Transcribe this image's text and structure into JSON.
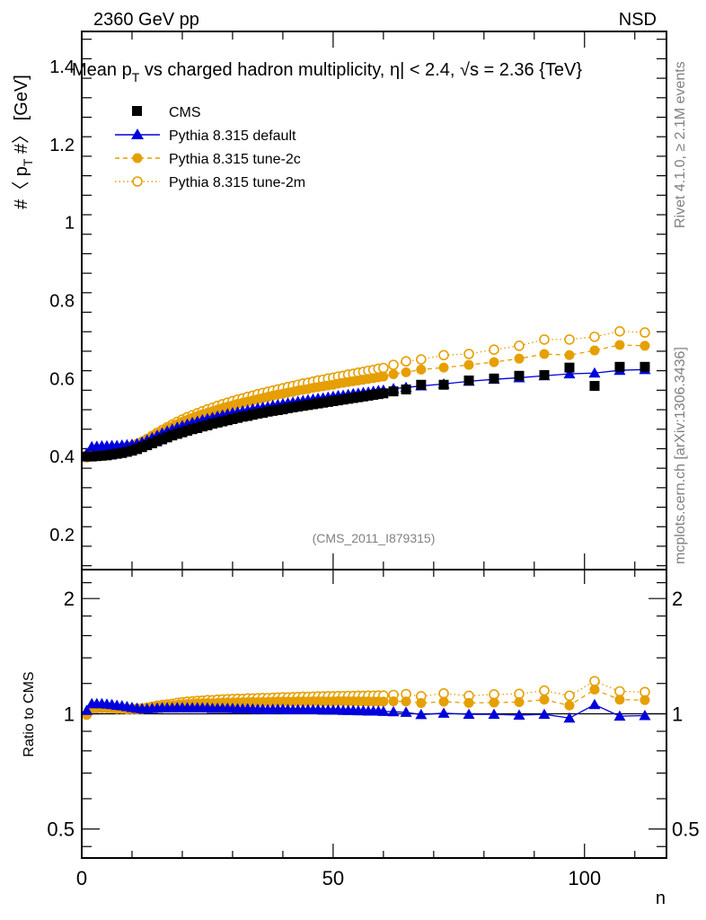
{
  "header": {
    "left_label": "2360 GeV pp",
    "right_label": "NSD"
  },
  "side_labels": {
    "rivet": "Rivet 4.1.0, ≥ 2.1M events",
    "mcplots": "mcplots.cern.ch [arXiv:1306.3436]"
  },
  "colors": {
    "cms": "#000000",
    "default": "#0000dd",
    "tune2c": "#e69f00",
    "tune2m": "#e69f00"
  },
  "chart_data": [
    {
      "type": "scatter",
      "title": "Mean p_T vs charged hadron multiplicity, |η| < 2.4, √s = 2.36 {TeV}",
      "title_parts": {
        "a": "Mean p",
        "sub": "T",
        "b": " vs charged hadron multiplicity, ",
        "eta": "η",
        "c": "| < 2.4, ",
        "sqrt": "√",
        "d": "s = 2.36 {TeV}"
      },
      "xlabel": "n",
      "ylabel": "#〈 p_T #〉 [GeV]",
      "ylabel_parts": {
        "a": "#〈 p",
        "sub": "T",
        "b": " #〉 [GeV]"
      },
      "watermark": "(CMS_2011_I879315)",
      "xlim": [
        0,
        116.3
      ],
      "ylim": [
        0.11,
        1.49
      ],
      "yticks": [
        0.2,
        0.4,
        0.6,
        0.8,
        1.0,
        1.2,
        1.4
      ],
      "ytick_labels": [
        "0.2",
        "0.4",
        "0.6",
        "0.8",
        "1",
        "1.2",
        "1.4"
      ],
      "legend": {
        "position": "top-left",
        "entries": [
          {
            "key": "cms",
            "label": "CMS"
          },
          {
            "key": "default",
            "label": "Pythia 8.315 default"
          },
          {
            "key": "tune2c",
            "label": "Pythia 8.315 tune-2c"
          },
          {
            "key": "tune2m",
            "label": "Pythia 8.315 tune-2m"
          }
        ]
      },
      "x": [
        1,
        2,
        3,
        4,
        5,
        6,
        7,
        8,
        9,
        10,
        11,
        12,
        13,
        14,
        15,
        16,
        17,
        18,
        19,
        20,
        21,
        22,
        23,
        24,
        25,
        26,
        27,
        28,
        29,
        30,
        31,
        32,
        33,
        34,
        35,
        36,
        37,
        38,
        39,
        40,
        41,
        42,
        43,
        44,
        45,
        46,
        47,
        48,
        49,
        50,
        51,
        52,
        53,
        54,
        55,
        56,
        57,
        58,
        59,
        60,
        62,
        64.5,
        67.5,
        72,
        77,
        82,
        87,
        92,
        97,
        102,
        107,
        112
      ],
      "series": [
        {
          "key": "cms",
          "name": "CMS",
          "values": [
            0.4,
            0.4,
            0.401,
            0.402,
            0.403,
            0.405,
            0.407,
            0.409,
            0.412,
            0.415,
            0.419,
            0.424,
            0.429,
            0.434,
            0.439,
            0.444,
            0.449,
            0.454,
            0.458,
            0.462,
            0.466,
            0.47,
            0.473,
            0.477,
            0.48,
            0.484,
            0.487,
            0.49,
            0.493,
            0.496,
            0.499,
            0.502,
            0.504,
            0.507,
            0.51,
            0.512,
            0.515,
            0.517,
            0.519,
            0.521,
            0.524,
            0.526,
            0.528,
            0.53,
            0.532,
            0.534,
            0.536,
            0.538,
            0.54,
            0.542,
            0.544,
            0.546,
            0.548,
            0.55,
            0.552,
            0.554,
            0.556,
            0.558,
            0.56,
            0.562,
            0.567,
            0.572,
            0.584,
            0.584,
            0.595,
            0.6,
            0.607,
            0.609,
            0.628,
            0.581,
            0.63,
            0.63
          ]
        },
        {
          "key": "default",
          "name": "Pythia 8.315 default",
          "values": [
            0.408,
            0.425,
            0.426,
            0.427,
            0.427,
            0.428,
            0.428,
            0.429,
            0.43,
            0.431,
            0.433,
            0.437,
            0.442,
            0.448,
            0.454,
            0.46,
            0.465,
            0.47,
            0.475,
            0.479,
            0.483,
            0.487,
            0.49,
            0.494,
            0.497,
            0.5,
            0.503,
            0.506,
            0.509,
            0.512,
            0.514,
            0.517,
            0.519,
            0.522,
            0.524,
            0.526,
            0.528,
            0.531,
            0.533,
            0.535,
            0.537,
            0.539,
            0.541,
            0.543,
            0.545,
            0.547,
            0.549,
            0.55,
            0.552,
            0.554,
            0.556,
            0.557,
            0.559,
            0.561,
            0.562,
            0.564,
            0.565,
            0.567,
            0.569,
            0.57,
            0.574,
            0.577,
            0.581,
            0.586,
            0.593,
            0.598,
            0.602,
            0.607,
            0.612,
            0.614,
            0.621,
            0.623
          ]
        },
        {
          "key": "tune2c",
          "name": "Pythia 8.315 tune-2c",
          "values": [
            0.398,
            0.413,
            0.415,
            0.416,
            0.417,
            0.418,
            0.419,
            0.421,
            0.423,
            0.426,
            0.43,
            0.436,
            0.443,
            0.45,
            0.457,
            0.464,
            0.471,
            0.477,
            0.483,
            0.489,
            0.494,
            0.499,
            0.504,
            0.508,
            0.512,
            0.516,
            0.52,
            0.524,
            0.528,
            0.531,
            0.535,
            0.538,
            0.541,
            0.544,
            0.547,
            0.55,
            0.553,
            0.556,
            0.559,
            0.561,
            0.564,
            0.566,
            0.569,
            0.571,
            0.573,
            0.576,
            0.578,
            0.58,
            0.582,
            0.584,
            0.587,
            0.589,
            0.591,
            0.593,
            0.595,
            0.597,
            0.599,
            0.601,
            0.603,
            0.605,
            0.611,
            0.616,
            0.623,
            0.628,
            0.635,
            0.642,
            0.651,
            0.663,
            0.66,
            0.672,
            0.686,
            0.684
          ]
        },
        {
          "key": "tune2m",
          "name": "Pythia 8.315 tune-2m",
          "values": [
            0.398,
            0.414,
            0.416,
            0.417,
            0.418,
            0.419,
            0.42,
            0.422,
            0.424,
            0.427,
            0.432,
            0.438,
            0.445,
            0.453,
            0.461,
            0.468,
            0.475,
            0.482,
            0.489,
            0.495,
            0.501,
            0.506,
            0.511,
            0.516,
            0.521,
            0.525,
            0.53,
            0.534,
            0.538,
            0.542,
            0.546,
            0.549,
            0.553,
            0.556,
            0.56,
            0.563,
            0.566,
            0.569,
            0.572,
            0.575,
            0.578,
            0.581,
            0.584,
            0.587,
            0.589,
            0.592,
            0.595,
            0.597,
            0.6,
            0.602,
            0.605,
            0.607,
            0.61,
            0.612,
            0.615,
            0.617,
            0.62,
            0.622,
            0.625,
            0.627,
            0.635,
            0.644,
            0.649,
            0.66,
            0.663,
            0.674,
            0.684,
            0.7,
            0.7,
            0.707,
            0.721,
            0.718
          ]
        }
      ]
    },
    {
      "type": "scatter",
      "title": "",
      "ylabel": "Ratio to CMS",
      "xlabel": "n",
      "yscale": "log",
      "xlim": [
        0,
        116.3
      ],
      "ylim": [
        0.42,
        2.38
      ],
      "yticks": [
        0.5,
        1,
        2
      ],
      "ytick_labels": [
        "0.5",
        "1",
        "2"
      ],
      "xticks": [
        0,
        50,
        100
      ],
      "xtick_labels": [
        "0",
        "50",
        "100"
      ],
      "reference_line": 1
    }
  ]
}
